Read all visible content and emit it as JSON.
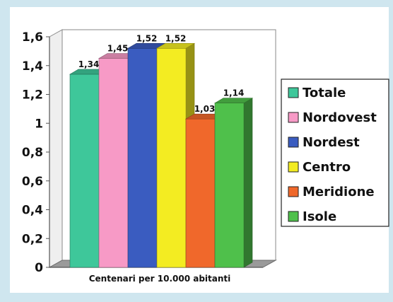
{
  "chart_data": {
    "type": "bar",
    "xlabel": "Centenari per 10.000 abitanti",
    "ylim": [
      0,
      1.6
    ],
    "yticks": [
      "0",
      "0,2",
      "0,4",
      "0,6",
      "0,8",
      "1",
      "1,2",
      "1,4",
      "1,6"
    ],
    "grid": false,
    "legend_position": "right",
    "series": [
      {
        "name": "Totale",
        "value": 1.34,
        "label": "1,34",
        "color": "#3ec79a"
      },
      {
        "name": "Nordovest",
        "value": 1.45,
        "label": "1,45",
        "color": "#f79ac6"
      },
      {
        "name": "Nordest",
        "value": 1.52,
        "label": "1,52",
        "color": "#3a5cc0"
      },
      {
        "name": "Centro",
        "value": 1.52,
        "label": "1,52",
        "color": "#f3ec22"
      },
      {
        "name": "Meridione",
        "value": 1.03,
        "label": "1,03",
        "color": "#f0682b"
      },
      {
        "name": "Isole",
        "value": 1.14,
        "label": "1,14",
        "color": "#4fc04b"
      }
    ]
  }
}
